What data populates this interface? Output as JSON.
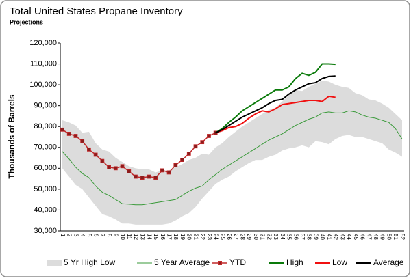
{
  "chart_data": {
    "type": "line",
    "title": "Total United States Propane Inventory",
    "subtitle": "Projections",
    "y_label": "Thousands of Barrels",
    "categories": [
      "1",
      "2",
      "3",
      "4",
      "5",
      "6",
      "7",
      "8",
      "9",
      "10",
      "11",
      "12",
      "13",
      "14",
      "15",
      "16",
      "17",
      "18",
      "19",
      "20",
      "21",
      "22",
      "23",
      "24",
      "25",
      "26",
      "27",
      "28",
      "29",
      "30",
      "31",
      "32",
      "33",
      "34",
      "35",
      "36",
      "37",
      "38",
      "39",
      "40",
      "41",
      "42",
      "43",
      "44",
      "45",
      "46",
      "47",
      "48",
      "49",
      "50",
      "51",
      "52"
    ],
    "ylim": [
      30000,
      120000
    ],
    "yticks": [
      {
        "value": 30000,
        "label": "30,000"
      },
      {
        "value": 40000,
        "label": "40,000"
      },
      {
        "value": 50000,
        "label": "50,000"
      },
      {
        "value": 60000,
        "label": "60,000"
      },
      {
        "value": 70000,
        "label": "70,000"
      },
      {
        "value": 80000,
        "label": "80,000"
      },
      {
        "value": 90000,
        "label": "90,000"
      },
      {
        "value": 100000,
        "label": "100,000"
      },
      {
        "value": 110000,
        "label": "110,000"
      },
      {
        "value": 120000,
        "label": "120,000"
      }
    ],
    "grid": false,
    "band": {
      "name": "5 Yr High Low",
      "color": "#dcdcdc",
      "high": [
        83000,
        82000,
        80500,
        77000,
        77500,
        72000,
        69000,
        68000,
        65000,
        63000,
        61000,
        60000,
        59500,
        59500,
        58000,
        59000,
        59000,
        60500,
        62000,
        64000,
        65000,
        67000,
        66500,
        70000,
        72000,
        75000,
        77500,
        80000,
        82000,
        84000,
        86000,
        88000,
        89000,
        92000,
        95000,
        97500,
        97000,
        99000,
        100500,
        102000,
        101500,
        100000,
        99000,
        98500,
        96000,
        95000,
        93000,
        92500,
        91000,
        89000,
        86000,
        83000
      ],
      "low": [
        60000,
        56000,
        52000,
        50000,
        46000,
        42000,
        38000,
        37000,
        35500,
        33500,
        33500,
        33000,
        33000,
        33000,
        33000,
        33000,
        33500,
        35000,
        37000,
        38500,
        41500,
        45500,
        49000,
        52500,
        54500,
        56000,
        58500,
        60500,
        62500,
        64000,
        64000,
        65500,
        66500,
        68500,
        69500,
        70000,
        71000,
        70000,
        73000,
        72500,
        71500,
        74000,
        75500,
        76000,
        75000,
        75000,
        74000,
        73000,
        72000,
        69000,
        67500,
        65500
      ]
    },
    "series": [
      {
        "name": "5 Year Average",
        "color": "#3a9a3a",
        "width": 1,
        "values": [
          68000,
          64500,
          60500,
          57500,
          55500,
          51500,
          48500,
          47000,
          45000,
          43000,
          42800,
          42500,
          42500,
          43000,
          43500,
          44000,
          44500,
          45000,
          47000,
          49000,
          50500,
          51500,
          54500,
          57000,
          59500,
          61500,
          63500,
          65500,
          67500,
          69500,
          71500,
          73500,
          75000,
          76500,
          78500,
          80500,
          82000,
          83500,
          84500,
          86500,
          87000,
          86500,
          86500,
          87500,
          87000,
          85500,
          84500,
          84000,
          83000,
          82000,
          79000,
          74000
        ]
      },
      {
        "name": "YTD",
        "color": "#c0282a",
        "marker": "#8b1c1c",
        "width": 1.5,
        "values": [
          78500,
          76500,
          75500,
          73000,
          69000,
          66500,
          63500,
          60500,
          60000,
          61000,
          58500,
          56000,
          55500,
          56000,
          55500,
          59000,
          58000,
          61500,
          64000,
          67000,
          70500,
          72500,
          75500,
          77000,
          null,
          null,
          null,
          null,
          null,
          null,
          null,
          null,
          null,
          null,
          null,
          null,
          null,
          null,
          null,
          null,
          null,
          null,
          null,
          null,
          null,
          null,
          null,
          null,
          null,
          null,
          null,
          null
        ]
      },
      {
        "name": "High",
        "color": "#0a7a0a",
        "width": 2,
        "values": [
          null,
          null,
          null,
          null,
          null,
          null,
          null,
          null,
          null,
          null,
          null,
          null,
          null,
          null,
          null,
          null,
          null,
          null,
          null,
          null,
          null,
          null,
          null,
          77000,
          79000,
          82000,
          84500,
          87500,
          89500,
          91500,
          93500,
          95500,
          97500,
          97500,
          99000,
          103000,
          105500,
          104500,
          106000,
          110000,
          110000,
          109800,
          null,
          null,
          null,
          null,
          null,
          null,
          null,
          null,
          null,
          null
        ]
      },
      {
        "name": "Low",
        "color": "#f01010",
        "width": 2,
        "values": [
          null,
          null,
          null,
          null,
          null,
          null,
          null,
          null,
          null,
          null,
          null,
          null,
          null,
          null,
          null,
          null,
          null,
          null,
          null,
          null,
          null,
          null,
          null,
          77000,
          78000,
          79500,
          80000,
          81500,
          84000,
          86000,
          87500,
          87000,
          88500,
          90500,
          91000,
          91500,
          92000,
          92500,
          92500,
          92000,
          94500,
          94000,
          null,
          null,
          null,
          null,
          null,
          null,
          null,
          null,
          null,
          null
        ]
      },
      {
        "name": "Average",
        "color": "#000000",
        "width": 2,
        "values": [
          null,
          null,
          null,
          null,
          null,
          null,
          null,
          null,
          null,
          null,
          null,
          null,
          null,
          null,
          null,
          null,
          null,
          null,
          null,
          null,
          null,
          null,
          null,
          77000,
          78500,
          80500,
          82500,
          84500,
          86000,
          87500,
          89000,
          91000,
          92500,
          93000,
          95500,
          97500,
          99000,
          100500,
          101000,
          103000,
          104000,
          104200,
          null,
          null,
          null,
          null,
          null,
          null,
          null,
          null,
          null,
          null
        ]
      }
    ]
  }
}
